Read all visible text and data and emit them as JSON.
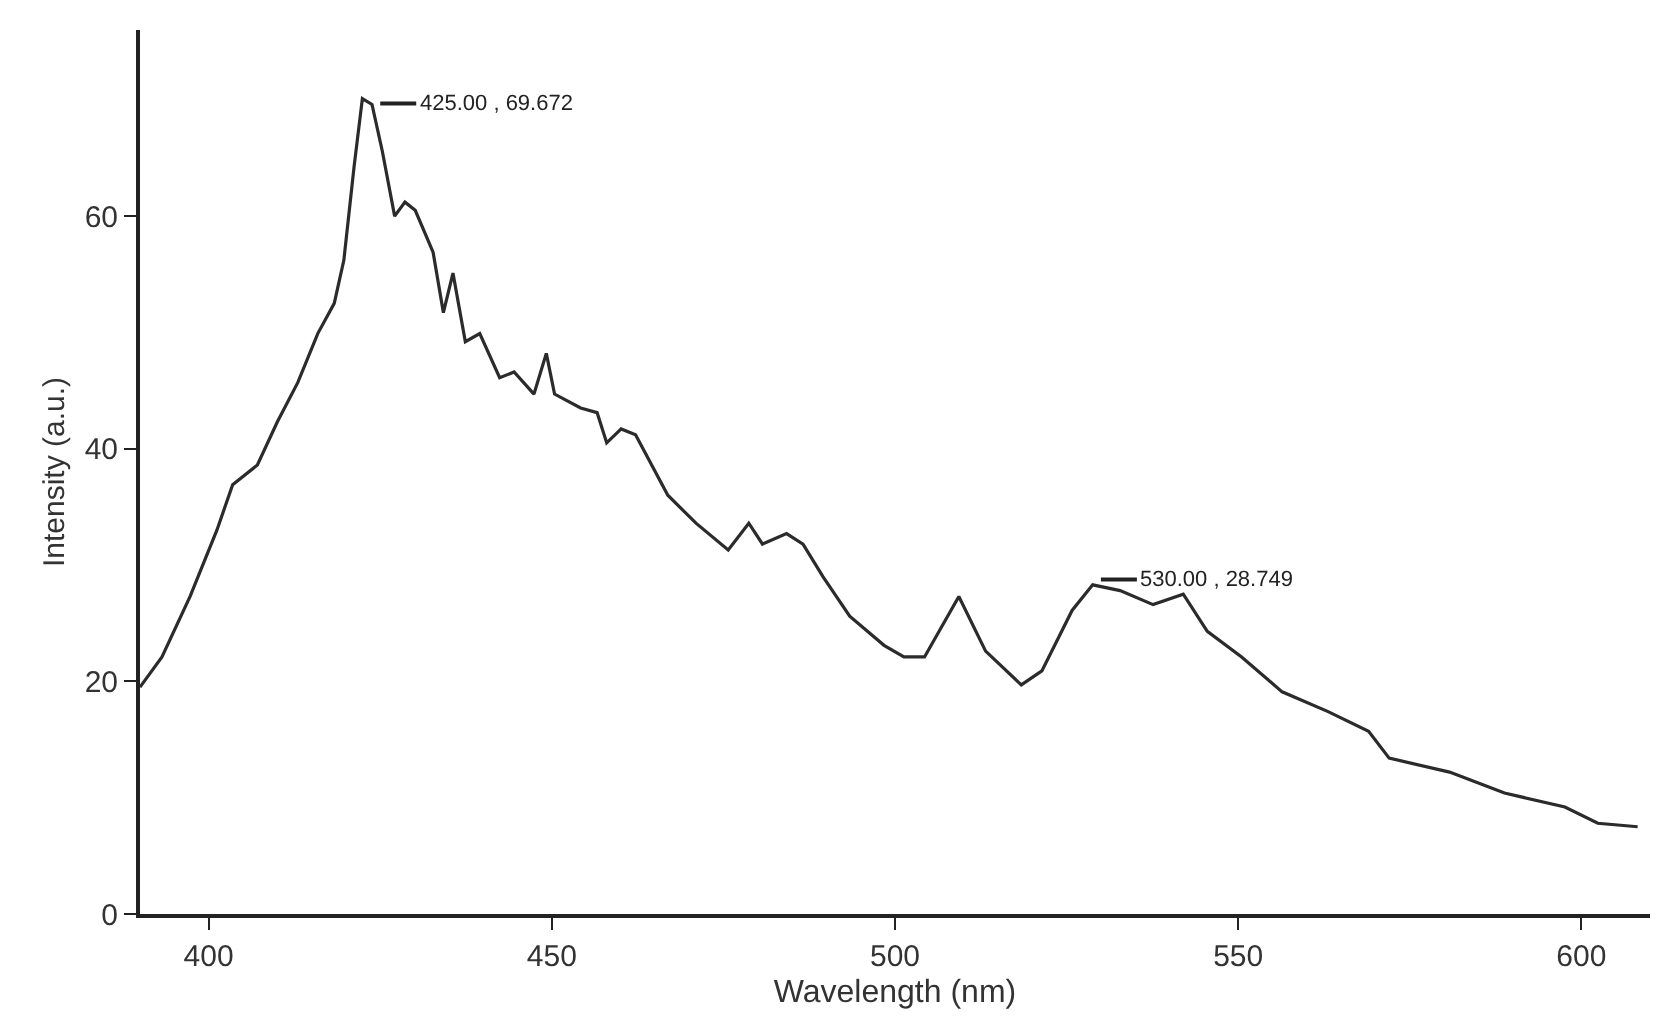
{
  "chart_data": {
    "type": "line",
    "xlabel": "Wavelength (nm)",
    "ylabel": "Intensity (a.u.)",
    "xlim": [
      390,
      610
    ],
    "ylim": [
      0,
      76
    ],
    "xticks": [
      400,
      450,
      500,
      550,
      600
    ],
    "yticks": [
      0,
      20,
      40,
      60
    ],
    "marker": "none",
    "line_style": "solid",
    "series": [
      {
        "color": "#2b2b2b",
        "x": [
          390,
          393.2,
          397.3,
          401.2,
          403.5,
          407.1,
          410.0,
          413.0,
          415.9,
          418.3,
          419.7,
          421.2,
          422.4,
          423.8,
          425.3,
          427.1,
          428.6,
          430.1,
          432.7,
          434.2,
          435.6,
          437.4,
          439.5,
          442.4,
          444.5,
          447.4,
          449.2,
          450.4,
          454.2,
          456.6,
          458.0,
          460.1,
          462.2,
          466.9,
          471.0,
          475.7,
          478.7,
          480.7,
          484.2,
          486.6,
          489.5,
          493.4,
          498.4,
          501.3,
          504.3,
          509.3,
          513.2,
          518.4,
          521.4,
          525.8,
          528.8,
          532.8,
          537.6,
          542.0,
          545.5,
          550.5,
          556.4,
          563.1,
          569.0,
          572.0,
          580.8,
          588.8,
          597.6,
          602.4,
          608.2
        ],
        "values": [
          19.5,
          22.1,
          27.3,
          33.0,
          36.9,
          38.6,
          42.3,
          45.7,
          49.9,
          52.5,
          56.2,
          64.3,
          70.1,
          69.6,
          65.6,
          60.0,
          61.2,
          60.5,
          56.9,
          51.7,
          55.1,
          49.2,
          49.9,
          46.1,
          46.6,
          44.7,
          48.2,
          44.7,
          43.5,
          43.1,
          40.5,
          41.7,
          41.2,
          36.0,
          33.6,
          31.3,
          33.6,
          31.8,
          32.7,
          31.8,
          29.0,
          25.6,
          23.1,
          22.1,
          22.1,
          27.3,
          22.6,
          19.7,
          20.9,
          26.1,
          28.3,
          27.8,
          26.6,
          27.5,
          24.3,
          22.1,
          19.1,
          17.4,
          15.7,
          13.4,
          12.2,
          10.4,
          9.2,
          7.8,
          7.5
        ]
      }
    ],
    "annotations": [
      {
        "text": "425.00 , 69.672",
        "x": 425,
        "y": 69.672
      },
      {
        "text": "530.00 , 28.749",
        "x": 530,
        "y": 28.749
      }
    ]
  }
}
